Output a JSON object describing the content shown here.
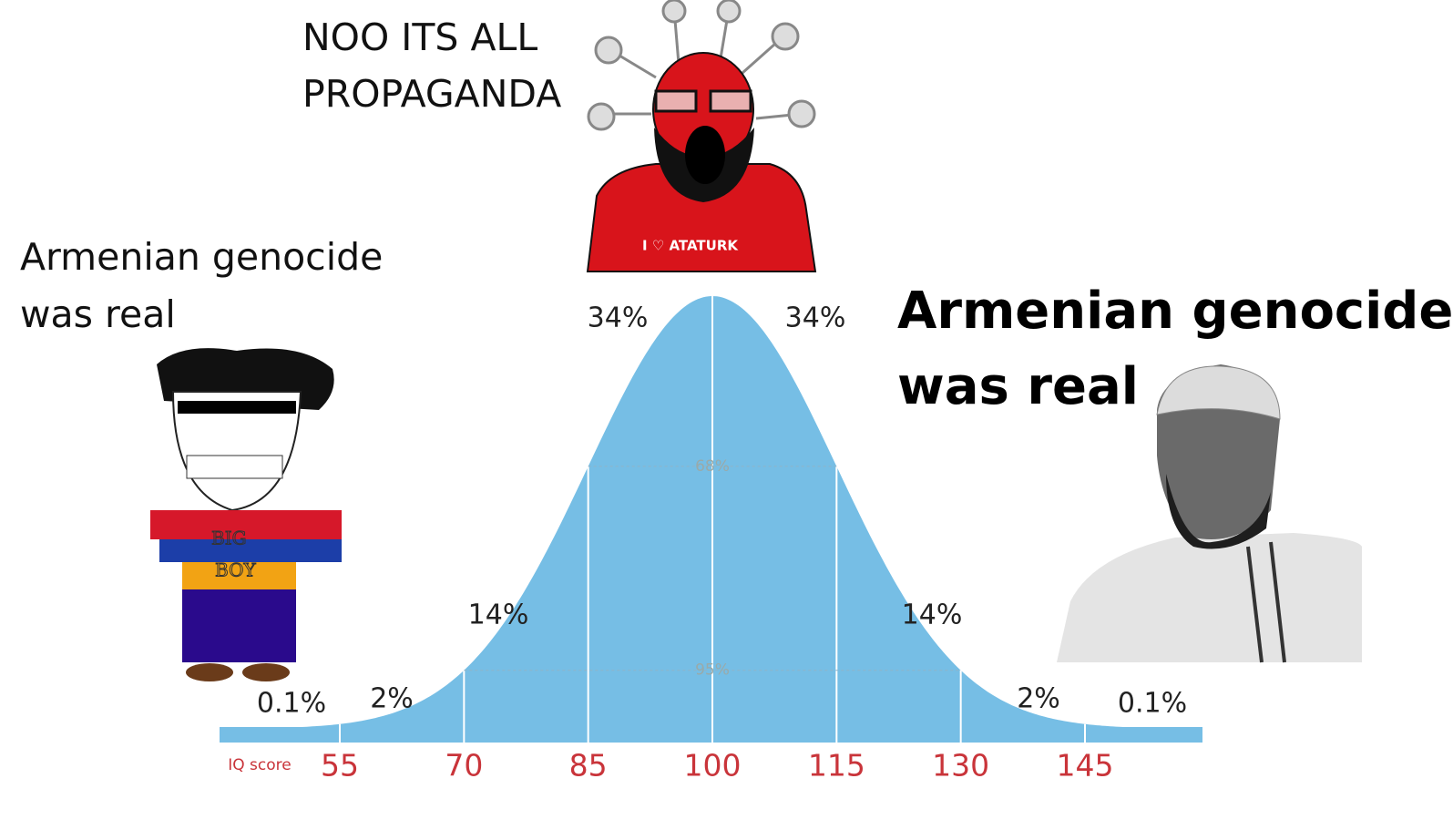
{
  "captions": {
    "top": [
      "NOO ITS ALL",
      "PROPAGANDA"
    ],
    "left": [
      "Armenian genocide",
      "was real"
    ],
    "right": [
      "Armenian genocide",
      "was real"
    ]
  },
  "bell_curve": {
    "axis_label": "IQ score",
    "ticks": [
      55,
      70,
      85,
      100,
      115,
      130,
      145
    ],
    "region_labels": [
      "0.1%",
      "2%",
      "14%",
      "34%",
      "34%",
      "14%",
      "2%",
      "0.1%"
    ],
    "band_labels": [
      "68%",
      "95%"
    ]
  },
  "characters": {
    "soyjak_shirt": "I ♡ ATATURK",
    "wojak_shirt": [
      "BIG",
      "BOY"
    ]
  }
}
